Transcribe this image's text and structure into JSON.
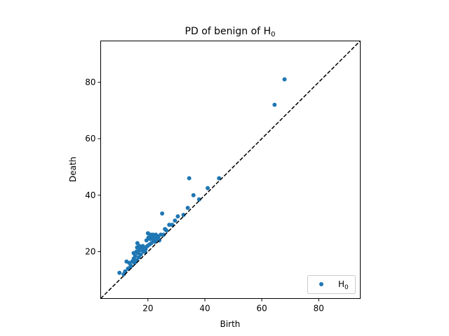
{
  "chart_data": {
    "type": "scatter",
    "title": "PD of benign of H",
    "title_sub": "0",
    "xlabel": "Birth",
    "ylabel": "Death",
    "xlim": [
      3.4,
      94.6
    ],
    "ylim": [
      3.4,
      94.6
    ],
    "xticks": [
      20,
      40,
      60,
      80
    ],
    "yticks": [
      20,
      40,
      60,
      80
    ],
    "diagonal": "dashed black y = x",
    "legend": {
      "position": "lower-right",
      "label": "H",
      "label_sub": "0"
    },
    "series": [
      {
        "name": "H0",
        "color": "#1f77b4",
        "points": [
          [
            10.0,
            12.5
          ],
          [
            11.5,
            12.0
          ],
          [
            12.0,
            13.0
          ],
          [
            12.5,
            16.5
          ],
          [
            13.0,
            14.0
          ],
          [
            13.5,
            16.0
          ],
          [
            13.8,
            14.5
          ],
          [
            14.0,
            15.0
          ],
          [
            14.5,
            16.5
          ],
          [
            15.0,
            19.5
          ],
          [
            15.0,
            17.5
          ],
          [
            15.3,
            16.0
          ],
          [
            15.5,
            18.5
          ],
          [
            16.0,
            20.0
          ],
          [
            16.0,
            17.0
          ],
          [
            16.2,
            21.5
          ],
          [
            16.3,
            23.0
          ],
          [
            16.5,
            19.5
          ],
          [
            16.8,
            18.0
          ],
          [
            17.0,
            22.0
          ],
          [
            17.0,
            20.5
          ],
          [
            17.2,
            21.0
          ],
          [
            17.5,
            19.0
          ],
          [
            17.8,
            21.5
          ],
          [
            18.0,
            20.5
          ],
          [
            18.2,
            22.0
          ],
          [
            18.5,
            20.0
          ],
          [
            18.8,
            21.5
          ],
          [
            19.0,
            20.0
          ],
          [
            19.2,
            21.0
          ],
          [
            19.5,
            24.0
          ],
          [
            19.8,
            22.0
          ],
          [
            20.0,
            26.5
          ],
          [
            20.2,
            25.0
          ],
          [
            20.5,
            22.5
          ],
          [
            20.8,
            24.5
          ],
          [
            21.0,
            26.0
          ],
          [
            21.2,
            23.0
          ],
          [
            21.5,
            25.0
          ],
          [
            21.8,
            26.0
          ],
          [
            22.0,
            24.0
          ],
          [
            22.3,
            25.5
          ],
          [
            22.5,
            23.5
          ],
          [
            22.8,
            26.0
          ],
          [
            23.0,
            24.5
          ],
          [
            23.3,
            25.5
          ],
          [
            23.6,
            25.0
          ],
          [
            24.0,
            24.0
          ],
          [
            24.5,
            26.0
          ],
          [
            25.0,
            33.5
          ],
          [
            25.5,
            26.0
          ],
          [
            26.0,
            28.0
          ],
          [
            26.5,
            27.5
          ],
          [
            27.5,
            29.5
          ],
          [
            28.5,
            29.5
          ],
          [
            29.5,
            31.0
          ],
          [
            30.5,
            32.5
          ],
          [
            32.5,
            33.0
          ],
          [
            34.0,
            35.5
          ],
          [
            34.5,
            46.0
          ],
          [
            36.0,
            40.0
          ],
          [
            38.0,
            38.5
          ],
          [
            41.0,
            42.5
          ],
          [
            45.0,
            46.0
          ],
          [
            64.5,
            72.0
          ],
          [
            68.0,
            81.0
          ]
        ]
      }
    ]
  }
}
